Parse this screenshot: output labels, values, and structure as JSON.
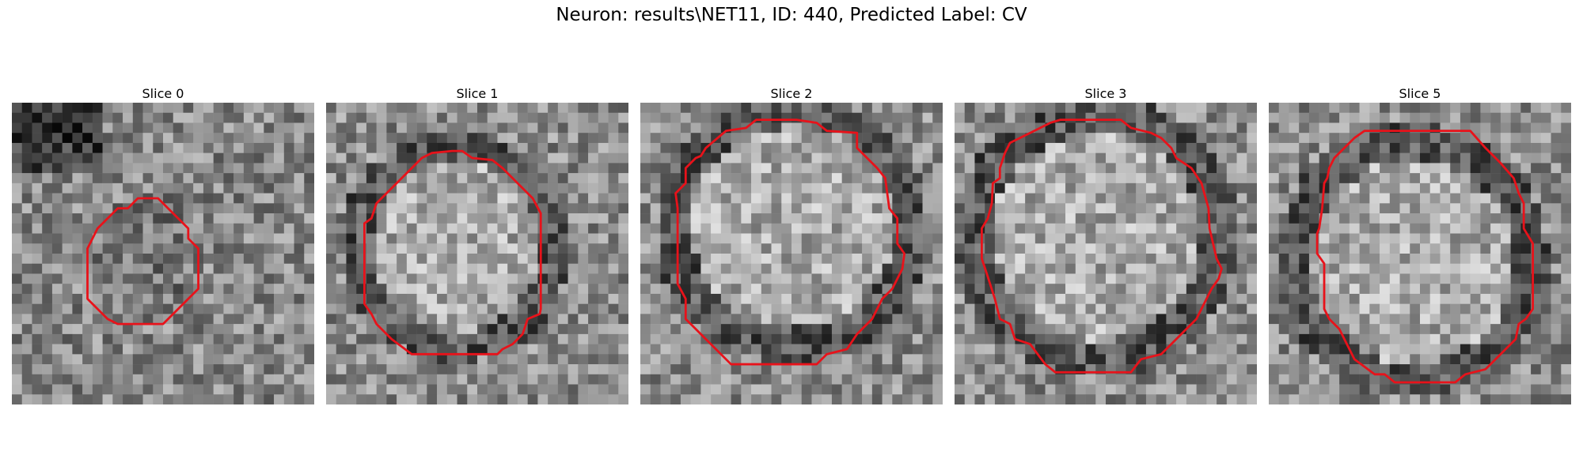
{
  "figure": {
    "title": "Neuron: results\\NET11, ID: 440, Predicted Label: CV"
  },
  "colors": {
    "contour": "#e8121a",
    "background": "#ffffff"
  },
  "grid_size": 30,
  "slices": [
    {
      "label": "Slice 0",
      "contour": [
        [
          14.5,
          9.5
        ],
        [
          12.5,
          9.5
        ],
        [
          11.5,
          10.5
        ],
        [
          10.5,
          10.5
        ],
        [
          9.5,
          11.5
        ],
        [
          8.5,
          12.5
        ],
        [
          7.5,
          14.5
        ],
        [
          7.5,
          19.5
        ],
        [
          9.5,
          21.5
        ],
        [
          10.5,
          22.0
        ],
        [
          15.0,
          22.0
        ],
        [
          17.5,
          19.5
        ],
        [
          18.5,
          18.5
        ],
        [
          18.5,
          14.5
        ],
        [
          17.5,
          13.5
        ],
        [
          17.5,
          12.5
        ],
        [
          16.5,
          11.5
        ],
        [
          15.5,
          10.5
        ]
      ]
    },
    {
      "label": "Slice 1",
      "contour": [
        [
          12.5,
          4.8
        ],
        [
          10.5,
          5.0
        ],
        [
          9.5,
          5.5
        ],
        [
          8.5,
          6.5
        ],
        [
          7.0,
          8.0
        ],
        [
          5.0,
          10.0
        ],
        [
          4.5,
          11.5
        ],
        [
          3.8,
          12.0
        ],
        [
          3.8,
          20.0
        ],
        [
          4.5,
          21.0
        ],
        [
          5.0,
          22.0
        ],
        [
          6.5,
          23.5
        ],
        [
          8.5,
          25.0
        ],
        [
          17.0,
          25.0
        ],
        [
          17.5,
          24.5
        ],
        [
          18.5,
          24.0
        ],
        [
          19.5,
          23.0
        ],
        [
          20.0,
          21.5
        ],
        [
          21.2,
          21.0
        ],
        [
          21.3,
          20.5
        ],
        [
          21.3,
          11.0
        ],
        [
          20.5,
          9.5
        ],
        [
          19.0,
          8.0
        ],
        [
          17.5,
          6.5
        ],
        [
          16.5,
          5.7
        ],
        [
          14.5,
          5.5
        ],
        [
          13.5,
          4.8
        ]
      ]
    },
    {
      "label": "Slice 2",
      "contour": [
        [
          11.5,
          1.7
        ],
        [
          10.5,
          2.5
        ],
        [
          8.5,
          2.8
        ],
        [
          6.5,
          4.5
        ],
        [
          6.0,
          5.3
        ],
        [
          5.5,
          5.5
        ],
        [
          4.5,
          6.5
        ],
        [
          4.5,
          8.0
        ],
        [
          3.5,
          9.0
        ],
        [
          3.7,
          10.5
        ],
        [
          3.7,
          18.0
        ],
        [
          4.5,
          19.5
        ],
        [
          4.5,
          21.5
        ],
        [
          5.5,
          22.5
        ],
        [
          6.5,
          23.5
        ],
        [
          9.0,
          26.0
        ],
        [
          17.5,
          26.0
        ],
        [
          18.5,
          25.0
        ],
        [
          20.5,
          24.5
        ],
        [
          21.5,
          23.0
        ],
        [
          23.0,
          21.5
        ],
        [
          24.0,
          19.5
        ],
        [
          25.0,
          18.5
        ],
        [
          26.0,
          16.5
        ],
        [
          26.2,
          15.0
        ],
        [
          25.5,
          14.0
        ],
        [
          25.5,
          11.5
        ],
        [
          24.7,
          10.5
        ],
        [
          24.3,
          7.5
        ],
        [
          23.5,
          6.5
        ],
        [
          22.5,
          5.5
        ],
        [
          21.5,
          4.5
        ],
        [
          21.5,
          3.0
        ],
        [
          18.5,
          2.8
        ],
        [
          17.5,
          2.0
        ],
        [
          15.5,
          1.7
        ]
      ]
    },
    {
      "label": "Slice 3",
      "contour": [
        [
          10.5,
          1.7
        ],
        [
          9.5,
          2.0
        ],
        [
          8.5,
          2.5
        ],
        [
          7.5,
          3.0
        ],
        [
          5.5,
          4.0
        ],
        [
          5.0,
          5.0
        ],
        [
          4.5,
          6.5
        ],
        [
          4.5,
          7.5
        ],
        [
          3.8,
          8.0
        ],
        [
          3.7,
          10.0
        ],
        [
          3.3,
          11.5
        ],
        [
          2.7,
          12.5
        ],
        [
          2.7,
          15.5
        ],
        [
          3.2,
          17.0
        ],
        [
          4.0,
          19.5
        ],
        [
          4.5,
          21.5
        ],
        [
          5.5,
          22.0
        ],
        [
          6.0,
          23.5
        ],
        [
          7.5,
          24.0
        ],
        [
          9.0,
          26.0
        ],
        [
          10.0,
          26.8
        ],
        [
          17.5,
          26.8
        ],
        [
          18.5,
          25.5
        ],
        [
          20.5,
          25.0
        ],
        [
          21.0,
          24.5
        ],
        [
          22.0,
          23.5
        ],
        [
          24.0,
          21.5
        ],
        [
          25.0,
          19.5
        ],
        [
          25.5,
          18.5
        ],
        [
          26.2,
          17.5
        ],
        [
          26.5,
          16.5
        ],
        [
          26.0,
          15.5
        ],
        [
          25.3,
          12.5
        ],
        [
          25.2,
          10.5
        ],
        [
          24.5,
          8.0
        ],
        [
          23.5,
          6.5
        ],
        [
          22.0,
          5.5
        ],
        [
          21.5,
          4.5
        ],
        [
          20.5,
          3.5
        ],
        [
          19.5,
          3.0
        ],
        [
          17.5,
          2.5
        ],
        [
          16.5,
          1.7
        ]
      ]
    },
    {
      "label": "Slice 5",
      "contour": [
        [
          9.5,
          2.8
        ],
        [
          8.5,
          3.5
        ],
        [
          7.5,
          4.5
        ],
        [
          6.5,
          5.5
        ],
        [
          6.0,
          6.5
        ],
        [
          5.8,
          7.5
        ],
        [
          5.5,
          8.0
        ],
        [
          5.3,
          10.5
        ],
        [
          5.0,
          12.5
        ],
        [
          4.8,
          13.0
        ],
        [
          4.8,
          15.0
        ],
        [
          5.5,
          16.0
        ],
        [
          5.5,
          20.5
        ],
        [
          6.0,
          21.5
        ],
        [
          7.0,
          22.5
        ],
        [
          7.5,
          23.5
        ],
        [
          8.0,
          24.5
        ],
        [
          8.5,
          25.5
        ],
        [
          10.5,
          27.0
        ],
        [
          11.5,
          27.0
        ],
        [
          12.5,
          27.8
        ],
        [
          18.5,
          27.8
        ],
        [
          19.5,
          27.0
        ],
        [
          21.5,
          26.5
        ],
        [
          22.5,
          25.5
        ],
        [
          24.5,
          23.5
        ],
        [
          24.8,
          22.0
        ],
        [
          25.5,
          21.5
        ],
        [
          26.2,
          20.5
        ],
        [
          26.2,
          14.0
        ],
        [
          25.3,
          12.5
        ],
        [
          25.3,
          10.0
        ],
        [
          24.8,
          9.0
        ],
        [
          24.3,
          7.5
        ],
        [
          23.0,
          6.0
        ],
        [
          21.5,
          4.5
        ],
        [
          20.0,
          2.8
        ]
      ]
    }
  ]
}
